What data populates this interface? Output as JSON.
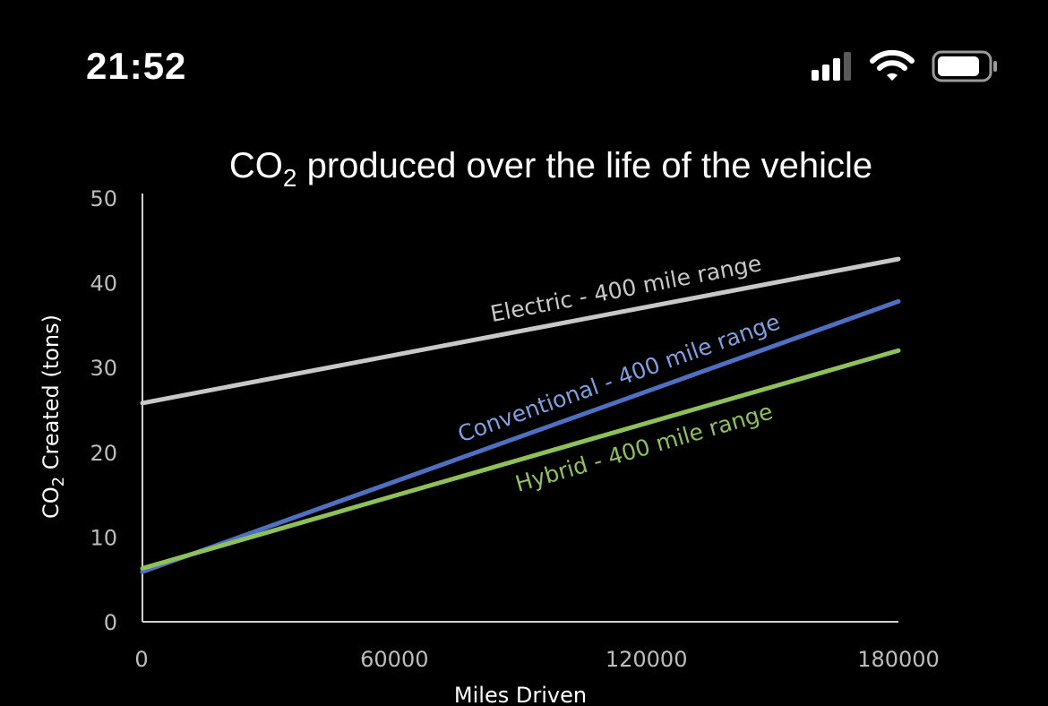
{
  "status_bar": {
    "time": "21:52",
    "icons": [
      "cellular-signal-icon",
      "wifi-icon",
      "battery-icon"
    ]
  },
  "chart_data": {
    "type": "line",
    "title_main": "CO",
    "title_sub": "2",
    "title_rest": " produced over the life of the vehicle",
    "xlabel": "Miles Driven",
    "ylabel_main": "CO",
    "ylabel_sub": "2",
    "ylabel_rest": " Created (tons)",
    "xlim": [
      0,
      180000
    ],
    "ylim": [
      0,
      50
    ],
    "xticks": [
      0,
      60000,
      120000,
      180000
    ],
    "xtick_labels": [
      "0",
      "60000",
      "120000",
      "180000"
    ],
    "yticks": [
      0,
      10,
      20,
      30,
      40,
      50
    ],
    "ytick_labels": [
      "0",
      "10",
      "20",
      "30",
      "40",
      "50"
    ],
    "grid": false,
    "legend": "none",
    "series": [
      {
        "name": "Electric - 400 mile range",
        "color": "#c8c8c8",
        "x": [
          0,
          180000
        ],
        "y": [
          25.8,
          42.8
        ]
      },
      {
        "name": "Conventional - 400 mile range",
        "color": "#4f6fc0",
        "x": [
          0,
          180000
        ],
        "y": [
          5.9,
          37.8
        ]
      },
      {
        "name": "Hybrid - 400 mile range",
        "color": "#8fc15a",
        "x": [
          0,
          180000
        ],
        "y": [
          6.3,
          32.0
        ]
      }
    ]
  }
}
